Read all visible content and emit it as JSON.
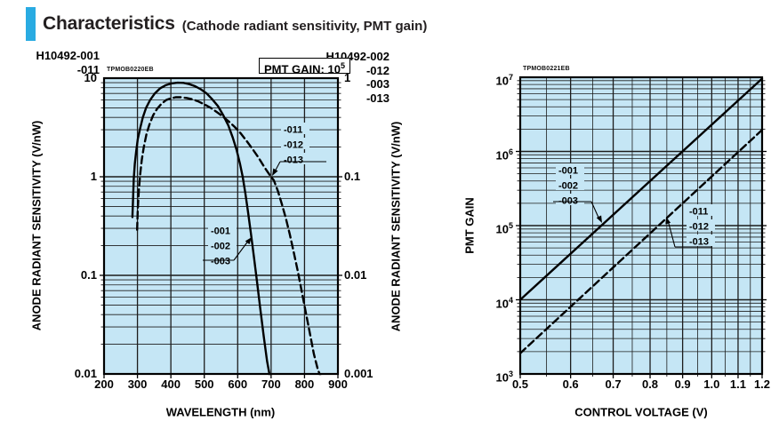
{
  "page": {
    "title": "Characteristics",
    "subtitle": "(Cathode radiant sensitivity, PMT gain)",
    "accent_color": "#29abe2",
    "plot_bg": "#c5e6f5",
    "grid_color": "#1d1d1d",
    "curve_color": "#000000"
  },
  "chart_data": [
    {
      "id": "cathode-radiant-sensitivity",
      "type": "line",
      "watermark": "TPMOB0220EB",
      "header_left_lines": [
        "H10492-001",
        "-011"
      ],
      "header_right_lines": [
        "H10492-002",
        "-012",
        "-003",
        "-013"
      ],
      "corner_note": "PMT GAIN: 10",
      "corner_note_sup": "5",
      "xlabel": "WAVELENGTH (nm)",
      "x_scale": "linear",
      "xlim": [
        200,
        900
      ],
      "x_ticks": [
        200,
        300,
        400,
        500,
        600,
        700,
        800,
        900
      ],
      "ylabel_left": "ANODE RADIANT SENSITIVITY (V/nW)",
      "ylabel_right": "ANODE RADIANT SENSITIVITY (V/nW)",
      "y_scale": "log",
      "ylim": [
        0.01,
        10
      ],
      "y_ticks_left": [
        "10",
        "1",
        "0.1",
        "0.01"
      ],
      "y_ticks_right": [
        "1",
        "0.1",
        "0.01",
        "0.001"
      ],
      "grid": true,
      "series": [
        {
          "name": "-001 / -002 / -003",
          "style": "solid",
          "callout_lines": [
            "-001",
            "-002",
            "-003"
          ],
          "points": [
            [
              285,
              0.39
            ],
            [
              287,
              0.62
            ],
            [
              289,
              0.95
            ],
            [
              292,
              1.35
            ],
            [
              296,
              1.8
            ],
            [
              301,
              2.4
            ],
            [
              308,
              3.1
            ],
            [
              316,
              4.0
            ],
            [
              326,
              5.0
            ],
            [
              338,
              6.0
            ],
            [
              352,
              7.0
            ],
            [
              368,
              7.9
            ],
            [
              385,
              8.5
            ],
            [
              402,
              8.85
            ],
            [
              420,
              9.0
            ],
            [
              438,
              8.95
            ],
            [
              455,
              8.7
            ],
            [
              472,
              8.3
            ],
            [
              490,
              7.7
            ],
            [
              507,
              7.0
            ],
            [
              524,
              6.1
            ],
            [
              541,
              5.2
            ],
            [
              557,
              4.2
            ],
            [
              572,
              3.3
            ],
            [
              585,
              2.5
            ],
            [
              597,
              1.85
            ],
            [
              607,
              1.35
            ],
            [
              615,
              1.0
            ],
            [
              623,
              0.68
            ],
            [
              631,
              0.44
            ],
            [
              640,
              0.26
            ],
            [
              649,
              0.15
            ],
            [
              658,
              0.085
            ],
            [
              668,
              0.045
            ],
            [
              678,
              0.024
            ],
            [
              688,
              0.0135
            ],
            [
              696,
              0.0095
            ]
          ]
        },
        {
          "name": "-011 / -012 / -013",
          "style": "dashed",
          "callout_lines": [
            "-011",
            "-012",
            "-013"
          ],
          "points": [
            [
              299,
              0.29
            ],
            [
              301,
              0.46
            ],
            [
              304,
              0.72
            ],
            [
              308,
              1.05
            ],
            [
              313,
              1.5
            ],
            [
              319,
              2.0
            ],
            [
              327,
              2.7
            ],
            [
              336,
              3.4
            ],
            [
              347,
              4.2
            ],
            [
              359,
              4.9
            ],
            [
              372,
              5.5
            ],
            [
              386,
              6.0
            ],
            [
              400,
              6.25
            ],
            [
              415,
              6.4
            ],
            [
              430,
              6.4
            ],
            [
              447,
              6.3
            ],
            [
              465,
              6.1
            ],
            [
              483,
              5.8
            ],
            [
              501,
              5.4
            ],
            [
              519,
              5.0
            ],
            [
              537,
              4.55
            ],
            [
              555,
              4.1
            ],
            [
              573,
              3.65
            ],
            [
              591,
              3.2
            ],
            [
              609,
              2.75
            ],
            [
              627,
              2.3
            ],
            [
              645,
              1.9
            ],
            [
              663,
              1.55
            ],
            [
              680,
              1.25
            ],
            [
              695,
              1.05
            ],
            [
              708,
              0.92
            ],
            [
              720,
              0.72
            ],
            [
              732,
              0.53
            ],
            [
              744,
              0.38
            ],
            [
              756,
              0.26
            ],
            [
              768,
              0.17
            ],
            [
              780,
              0.11
            ],
            [
              792,
              0.068
            ],
            [
              804,
              0.042
            ],
            [
              816,
              0.026
            ],
            [
              828,
              0.016
            ],
            [
              840,
              0.011
            ],
            [
              848,
              0.0095
            ]
          ]
        }
      ]
    },
    {
      "id": "pmt-gain",
      "type": "line",
      "watermark": "TPMOB0221EB",
      "xlabel": "CONTROL VOLTAGE (V)",
      "x_scale": "log",
      "xlim": [
        0.5,
        1.2
      ],
      "x_ticks": [
        "0.5",
        "0.6",
        "0.7",
        "0.8",
        "0.9",
        "1.0",
        "1.1",
        "1.2"
      ],
      "ylabel": "PMT GAIN",
      "y_scale": "log",
      "ylim": [
        1000,
        10000000
      ],
      "y_ticks": [
        "10^7",
        "10^6",
        "10^5",
        "10^4",
        "10^3"
      ],
      "grid": true,
      "series": [
        {
          "name": "-001 / -002 / -003",
          "style": "solid",
          "callout_lines": [
            "-001",
            "-002",
            "-003"
          ],
          "points": [
            [
              0.5,
              10000
            ],
            [
              1.2,
              9600000
            ]
          ]
        },
        {
          "name": "-011 / -012 / -013",
          "style": "dashed",
          "callout_lines": [
            "-011",
            "-012",
            "-013"
          ],
          "points": [
            [
              0.5,
              1900
            ],
            [
              1.2,
              1950000
            ]
          ]
        }
      ]
    }
  ]
}
